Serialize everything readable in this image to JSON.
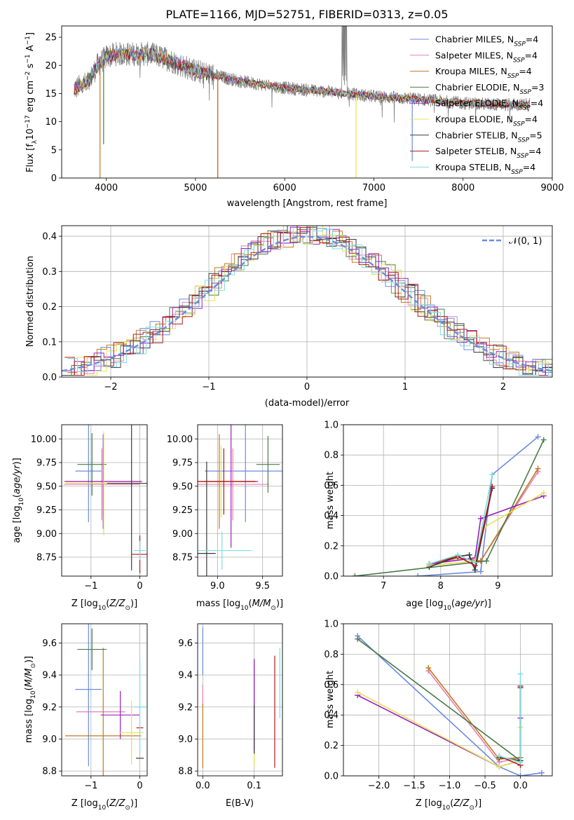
{
  "figure_title": "PLATE=1166, MJD=52751, FIBERID=0313, z=0.05",
  "colors": [
    "#6a8be0",
    "#e67fb5",
    "#c07a1f",
    "#4a7b4a",
    "#9a20c0",
    "#e8e050",
    "#3a3a3a",
    "#b01818",
    "#80dce0"
  ],
  "legend_models": [
    {
      "base": "Chabrier MILES, N",
      "sub": "SSP",
      "tail": "=4"
    },
    {
      "base": "Salpeter MILES, N",
      "sub": "SSP",
      "tail": "=4"
    },
    {
      "base": "Kroupa MILES, N",
      "sub": "SSP",
      "tail": "=4"
    },
    {
      "base": "Chabrier ELODIE, N",
      "sub": "SSP",
      "tail": "=3"
    },
    {
      "base": "Salpeter ELODIE, N",
      "sub": "SSP",
      "tail": "=4"
    },
    {
      "base": "Kroupa ELODIE, N",
      "sub": "SSP",
      "tail": "=4"
    },
    {
      "base": "Chabrier STELIB, N",
      "sub": "SSP",
      "tail": "=5"
    },
    {
      "base": "Salpeter STELIB, N",
      "sub": "SSP",
      "tail": "=4"
    },
    {
      "base": "Kroupa STELIB, N",
      "sub": "SSP",
      "tail": "=4"
    }
  ],
  "chart_data": [
    {
      "id": "spectrum",
      "type": "line",
      "xlabel": "wavelength [Angstrom, rest frame]",
      "ylabel": "Flux [f_λ 10^-17 erg cm^-2 s^-1 A^-1]",
      "xlim": [
        3500,
        9000
      ],
      "ylim": [
        0,
        27
      ],
      "xticks": [
        4000,
        5000,
        6000,
        7000,
        8000,
        9000
      ],
      "yticks": [
        0,
        5,
        10,
        15,
        20,
        25
      ],
      "grid": false,
      "legend": "top-right",
      "continuum": [
        [
          3640,
          15.8
        ],
        [
          3800,
          17
        ],
        [
          3900,
          20
        ],
        [
          4000,
          21.5
        ],
        [
          4100,
          22
        ],
        [
          4300,
          22
        ],
        [
          4500,
          22
        ],
        [
          4700,
          21
        ],
        [
          5000,
          19
        ],
        [
          5500,
          17.2
        ],
        [
          6000,
          16
        ],
        [
          6500,
          15.3
        ],
        [
          7000,
          14.5
        ],
        [
          7500,
          14
        ],
        [
          8000,
          13.3
        ],
        [
          8500,
          13
        ],
        [
          8750,
          13
        ]
      ]
    },
    {
      "id": "residuals",
      "type": "line",
      "xlabel": "(data-model)/error",
      "ylabel": "Normed distribution",
      "xlim": [
        -2.5,
        2.5
      ],
      "ylim": [
        0,
        0.43
      ],
      "xticks": [
        -2,
        -1,
        0,
        1,
        2
      ],
      "yticks": [
        0.0,
        0.1,
        0.2,
        0.3,
        0.4
      ],
      "grid": true,
      "legend": "top-right",
      "reference": "N(0,1)",
      "reference_label": "𝒩(0, 1)"
    },
    {
      "id": "age_vs_Z",
      "type": "scatter",
      "xlabel": "Z [log10(Z/Z⊙)]",
      "ylabel": "age [log10(age/yr)]",
      "xlim": [
        -1.6,
        0.15
      ],
      "ylim": [
        8.55,
        10.15
      ],
      "xticks": [
        -1,
        0
      ],
      "yticks": [
        8.75,
        9.0,
        9.25,
        9.5,
        9.75,
        10.0
      ],
      "grid": true,
      "points": [
        {
          "x": -1.05,
          "xerr": 0.27,
          "y": 9.66,
          "yerr": 0.54
        },
        {
          "x": -0.78,
          "xerr": 0.78,
          "y": 9.52,
          "yerr": 0.38
        },
        {
          "x": -0.75,
          "xerr": 0.8,
          "y": 9.55,
          "yerr": 0.38
        },
        {
          "x": -0.98,
          "xerr": 0.3,
          "y": 9.73,
          "yerr": 0.33
        },
        {
          "x": -0.75,
          "xerr": 0.78,
          "y": 9.55,
          "yerr": 0.5
        },
        {
          "x": -0.74,
          "xerr": 0.78,
          "y": 9.53,
          "yerr": 0.55
        },
        {
          "x": -0.17,
          "xerr": 0.5,
          "y": 9.53,
          "yerr": 0.92
        },
        {
          "x": 0.0,
          "xerr": 0.16,
          "y": 8.78,
          "yerr": 0.2
        },
        {
          "x": 0.0,
          "xerr": 0.12,
          "y": 8.82,
          "yerr": 0.1
        }
      ]
    },
    {
      "id": "age_vs_mass",
      "type": "scatter",
      "xlabel": "mass [log10(M/M⊙)]",
      "ylabel": "",
      "xlim": [
        8.78,
        9.72
      ],
      "ylim": [
        8.55,
        10.15
      ],
      "xticks": [
        9.0,
        9.5
      ],
      "yticks": [
        8.75,
        9.0,
        9.25,
        9.5,
        9.75,
        10.0
      ],
      "grid": true,
      "points": [
        {
          "x": 9.31,
          "xerr": 0.45,
          "y": 9.66,
          "yerr": 0.54
        },
        {
          "x": 9.17,
          "xerr": 0.4,
          "y": 9.52,
          "yerr": 0.38
        },
        {
          "x": 9.02,
          "xerr": 0.4,
          "y": 9.55,
          "yerr": 0.5
        },
        {
          "x": 9.56,
          "xerr": 0.13,
          "y": 9.73,
          "yerr": 0.3
        },
        {
          "x": 9.15,
          "xerr": 0.3,
          "y": 9.55,
          "yerr": 0.7
        },
        {
          "x": 9.04,
          "xerr": 0.25,
          "y": 9.55,
          "yerr": 0.38
        },
        {
          "x": 8.88,
          "xerr": 0.1,
          "y": 8.79,
          "yerr": 0.97
        },
        {
          "x": 9.07,
          "xerr": 0.35,
          "y": 9.55,
          "yerr": 0.35
        },
        {
          "x": 9.05,
          "xerr": 0.33,
          "y": 8.82,
          "yerr": 0.2
        }
      ]
    },
    {
      "id": "mass_weight_vs_age",
      "type": "line",
      "xlabel": "age [log10(age/yr)]",
      "ylabel": "mass weight",
      "xlim": [
        6.3,
        9.95
      ],
      "ylim": [
        0,
        1.0
      ],
      "xticks": [
        7,
        8,
        9
      ],
      "yticks": [
        0.0,
        0.2,
        0.4,
        0.6,
        0.8,
        1.0
      ],
      "grid": true,
      "series": [
        {
          "x": [
            7.6,
            8.7,
            8.9,
            9.7
          ],
          "y": [
            0.0,
            0.03,
            0.67,
            0.92
          ]
        },
        {
          "x": [
            7.8,
            8.3,
            8.7,
            9.7
          ],
          "y": [
            0.07,
            0.12,
            0.1,
            0.69
          ]
        },
        {
          "x": [
            7.8,
            8.3,
            8.7,
            9.7
          ],
          "y": [
            0.08,
            0.12,
            0.1,
            0.71
          ]
        },
        {
          "x": [
            6.5,
            8.8,
            9.8
          ],
          "y": [
            0.0,
            0.1,
            0.9
          ]
        },
        {
          "x": [
            7.8,
            8.6,
            8.7,
            9.8
          ],
          "y": [
            0.08,
            0.12,
            0.38,
            0.53
          ]
        },
        {
          "x": [
            7.8,
            8.6,
            8.75,
            9.8
          ],
          "y": [
            0.07,
            0.1,
            0.32,
            0.55
          ]
        },
        {
          "x": [
            7.8,
            8.3,
            8.5,
            8.6,
            8.9
          ],
          "y": [
            0.06,
            0.13,
            0.14,
            0.04,
            0.58
          ]
        },
        {
          "x": [
            7.8,
            8.3,
            8.6,
            8.9
          ],
          "y": [
            0.08,
            0.13,
            0.07,
            0.59
          ]
        },
        {
          "x": [
            7.8,
            8.3,
            8.6,
            8.9
          ],
          "y": [
            0.08,
            0.14,
            0.09,
            0.67
          ]
        }
      ]
    },
    {
      "id": "mass_vs_Z",
      "type": "scatter",
      "xlabel": "Z [log10(Z/Z⊙)]",
      "ylabel": "mass [log10(M/M⊙)]",
      "xlim": [
        -1.6,
        0.15
      ],
      "ylim": [
        8.77,
        9.72
      ],
      "xticks": [
        -1,
        0
      ],
      "yticks": [
        8.8,
        9.0,
        9.2,
        9.4,
        9.6
      ],
      "grid": true,
      "points": [
        {
          "x": -1.05,
          "xerr": 0.27,
          "y": 9.31,
          "yerr": 0.48
        },
        {
          "x": -0.8,
          "xerr": 0.5,
          "y": 9.17,
          "yerr": 0.0
        },
        {
          "x": -0.75,
          "xerr": 0.78,
          "y": 9.02,
          "yerr": 0.55
        },
        {
          "x": -0.98,
          "xerr": 0.3,
          "y": 9.56,
          "yerr": 0.13
        },
        {
          "x": -0.4,
          "xerr": 0.4,
          "y": 9.15,
          "yerr": 0.15
        },
        {
          "x": -0.17,
          "xerr": 0.25,
          "y": 9.04,
          "yerr": 0.2
        },
        {
          "x": 0.0,
          "xerr": 0.08,
          "y": 8.88,
          "yerr": 0.0
        },
        {
          "x": 0.0,
          "xerr": 0.07,
          "y": 9.07,
          "yerr": 0.0
        },
        {
          "x": 0.0,
          "xerr": 0.12,
          "y": 9.2,
          "yerr": 0.3
        }
      ]
    },
    {
      "id": "mass_vs_EBV",
      "type": "scatter",
      "xlabel": "E(B-V)",
      "ylabel": "",
      "xlim": [
        -0.01,
        0.155
      ],
      "ylim": [
        8.77,
        9.72
      ],
      "xticks": [
        0.0,
        0.1
      ],
      "yticks": [
        8.8,
        9.0,
        9.2,
        9.4,
        9.6
      ],
      "grid": true,
      "points": [
        {
          "x": 0.0,
          "y": 9.55,
          "yerr": 0.15
        },
        {
          "x": 0.0,
          "y": 9.27,
          "yerr": 0.07
        },
        {
          "x": 0.0,
          "y": 9.02,
          "yerr": 0.2
        },
        {
          "x": 0.1,
          "y": 9.2,
          "yerr": 0.3
        },
        {
          "x": 0.1,
          "y": 9.2,
          "yerr": 0.3
        },
        {
          "x": 0.1,
          "y": 8.88,
          "yerr": 0.05
        },
        {
          "x": 0.1,
          "y": 9.06,
          "yerr": 0.15
        },
        {
          "x": 0.14,
          "y": 9.17,
          "yerr": 0.35
        },
        {
          "x": 0.15,
          "y": 9.35,
          "yerr": 0.22
        }
      ]
    },
    {
      "id": "mass_weight_vs_Z",
      "type": "line",
      "xlabel": "Z [log10(Z/Z⊙)]",
      "ylabel": "mass weight",
      "xlim": [
        -2.5,
        0.45
      ],
      "ylim": [
        0,
        1.0
      ],
      "xticks": [
        -2.0,
        -1.5,
        -1.0,
        -0.5,
        0.0
      ],
      "yticks": [
        0.0,
        0.2,
        0.4,
        0.6,
        0.8,
        1.0
      ],
      "grid": true,
      "series": [
        {
          "x": [
            -2.3,
            -0.3,
            0.0,
            0.3
          ],
          "y": [
            0.92,
            0.06,
            0.0,
            0.02
          ]
        },
        {
          "x": [
            -1.3,
            -0.3,
            0.0
          ],
          "y": [
            0.69,
            0.09,
            0.12
          ]
        },
        {
          "x": [
            -1.3,
            -0.3,
            0.0
          ],
          "y": [
            0.71,
            0.11,
            0.12
          ]
        },
        {
          "x": [
            -2.3,
            0.0
          ],
          "y": [
            0.9,
            0.1
          ]
        },
        {
          "x": [
            -2.3,
            -0.3,
            0.0,
            0.0
          ],
          "y": [
            0.53,
            0.06,
            0.1,
            0.38
          ]
        },
        {
          "x": [
            -2.3,
            -0.3,
            0.0,
            0.0
          ],
          "y": [
            0.55,
            0.06,
            0.1,
            0.32
          ]
        },
        {
          "x": [
            -0.3,
            0.0,
            0.0
          ],
          "y": [
            0.12,
            0.1,
            0.58
          ]
        },
        {
          "x": [
            -0.3,
            0.0,
            0.0
          ],
          "y": [
            0.13,
            0.07,
            0.59
          ]
        },
        {
          "x": [
            -0.3,
            0.0,
            0.0
          ],
          "y": [
            0.13,
            0.09,
            0.67
          ]
        }
      ]
    }
  ]
}
